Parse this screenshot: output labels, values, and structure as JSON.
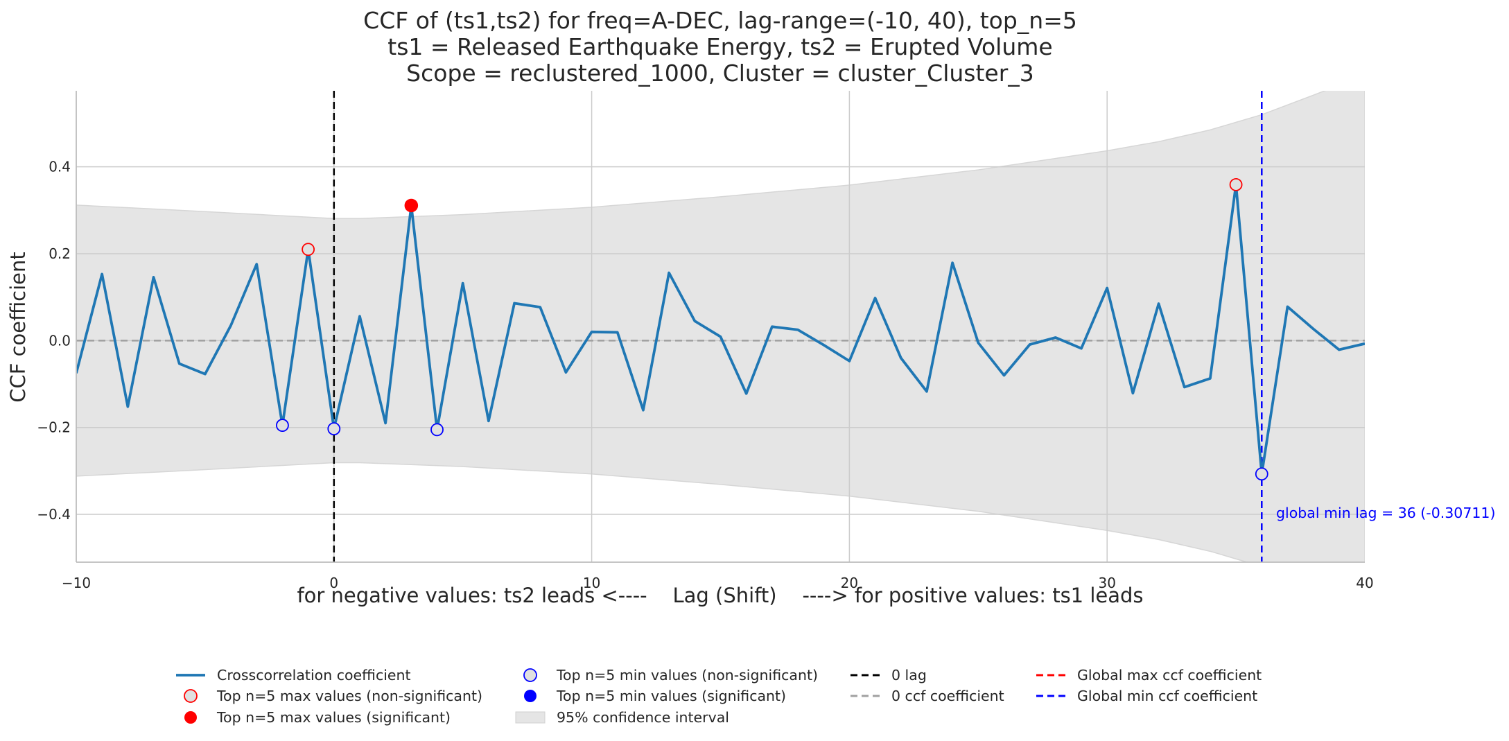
{
  "chart_data": {
    "type": "line",
    "title": [
      "CCF of (ts1,ts2) for freq=A-DEC, lag-range=(-10, 40), top_n=5",
      "ts1 = Released Earthquake Energy, ts2 = Erupted Volume",
      "Scope = reclustered_1000, Cluster = cluster_Cluster_3"
    ],
    "xlabel": "for negative values: ts2 leads <----    Lag (Shift)    ----> for positive values: ts1 leads",
    "ylabel": "CCF coefficient",
    "xlim": [
      -10,
      40
    ],
    "ylim": [
      -0.51,
      0.575
    ],
    "xticks": [
      -10,
      0,
      10,
      20,
      30,
      40
    ],
    "xtick_labels": [
      "−10",
      "0",
      "10",
      "20",
      "30",
      "40"
    ],
    "yticks": [
      -0.4,
      -0.2,
      0.0,
      0.2,
      0.4
    ],
    "ytick_labels": [
      "−0.4",
      "−0.2",
      "0.0",
      "0.2",
      "0.4"
    ],
    "grid": true,
    "series": [
      {
        "name": "Crosscorrelation coefficient",
        "color": "#1f77b4",
        "x": [
          -10,
          -9,
          -8,
          -7,
          -6,
          -5,
          -4,
          -3,
          -2,
          -1,
          0,
          1,
          2,
          3,
          4,
          5,
          6,
          7,
          8,
          9,
          10,
          11,
          12,
          13,
          14,
          15,
          16,
          17,
          18,
          19,
          20,
          21,
          22,
          23,
          24,
          25,
          26,
          27,
          28,
          29,
          30,
          31,
          32,
          33,
          34,
          35,
          36,
          37,
          38,
          39,
          40
        ],
        "values": [
          -0.075,
          0.153,
          -0.152,
          0.146,
          -0.053,
          -0.077,
          0.035,
          0.176,
          -0.195,
          0.21,
          -0.203,
          0.056,
          -0.19,
          0.311,
          -0.205,
          0.132,
          -0.185,
          0.086,
          0.077,
          -0.073,
          0.02,
          0.019,
          -0.16,
          0.156,
          0.045,
          0.009,
          -0.122,
          0.032,
          0.025,
          -0.01,
          -0.047,
          0.098,
          -0.04,
          -0.117,
          0.179,
          -0.005,
          -0.08,
          -0.009,
          0.007,
          -0.018,
          0.121,
          -0.121,
          0.085,
          -0.107,
          -0.087,
          0.359,
          -0.307,
          0.078,
          0.027,
          -0.021,
          -0.007
        ]
      }
    ],
    "confidence_interval": {
      "name": "95% confidence interval",
      "color": "#e5e5e5",
      "x": [
        -10,
        -5,
        0,
        1,
        5,
        10,
        15,
        20,
        25,
        30,
        32,
        34,
        36,
        38,
        40
      ],
      "upper": [
        0.312,
        0.297,
        0.281,
        0.281,
        0.29,
        0.307,
        0.331,
        0.358,
        0.393,
        0.437,
        0.458,
        0.485,
        0.52,
        0.565,
        0.61
      ],
      "lower": [
        -0.312,
        -0.297,
        -0.281,
        -0.281,
        -0.29,
        -0.307,
        -0.331,
        -0.358,
        -0.393,
        -0.437,
        -0.458,
        -0.485,
        -0.52,
        -0.565,
        -0.61
      ]
    },
    "top_max_nonsignificant": [
      {
        "x": -1,
        "y": 0.21
      },
      {
        "x": 35,
        "y": 0.359
      }
    ],
    "top_max_significant": [
      {
        "x": 3,
        "y": 0.311
      }
    ],
    "top_min_nonsignificant": [
      {
        "x": -2,
        "y": -0.195
      },
      {
        "x": 0,
        "y": -0.203
      },
      {
        "x": 4,
        "y": -0.205
      },
      {
        "x": 36,
        "y": -0.307
      }
    ],
    "top_min_significant": [],
    "zero_lag_x": 0,
    "zero_ccf_y": 0,
    "global_min_lag": 36,
    "global_min_value": -0.30711,
    "annotation": "global min lag = 36 (-0.30711)",
    "colors": {
      "line": "#1f77b4",
      "max_marker": "#ff0000",
      "min_marker": "#0000ff",
      "zero_lag": "#000000",
      "zero_ccf": "#a0a0a0",
      "global_min": "#0000ff",
      "global_max": "#ff0000",
      "ci_fill": "#e5e5e5",
      "grid": "#cccccc"
    },
    "legend": {
      "placement": "bottom-center",
      "columns": [
        [
          "Crosscorrelation coefficient",
          "Top n=5 max values (non-significant)",
          "Top n=5 max values (significant)"
        ],
        [
          "Top n=5 min values (non-significant)",
          "Top n=5 min values (significant)",
          "95% confidence interval"
        ],
        [
          "0 lag",
          "0 ccf coefficient"
        ],
        [
          "Global max ccf coefficient",
          "Global min ccf coefficient"
        ]
      ]
    }
  }
}
